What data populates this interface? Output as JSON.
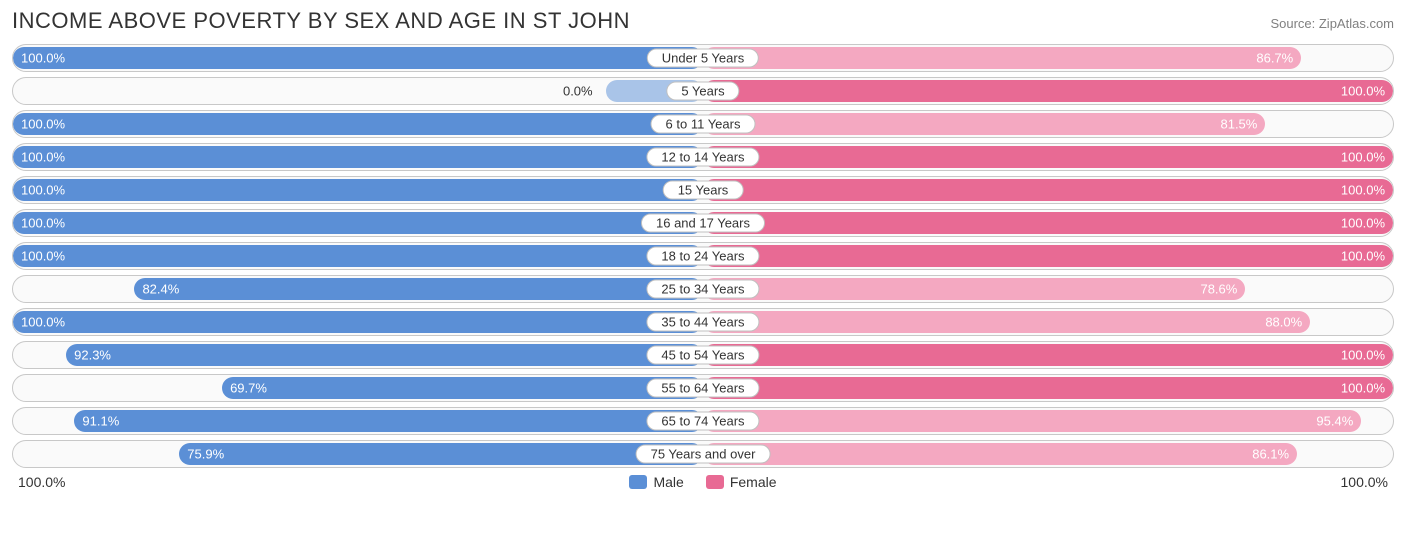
{
  "title": "INCOME ABOVE POVERTY BY SEX AND AGE IN ST JOHN",
  "source": "Source: ZipAtlas.com",
  "axis_left": "100.0%",
  "axis_right": "100.0%",
  "legend": {
    "male": "Male",
    "female": "Female"
  },
  "colors": {
    "male_full": "#5b8fd6",
    "male_light": "#a9c4e8",
    "female_full": "#e86a94",
    "female_light": "#f4a8c1",
    "row_border": "#c8c8c8",
    "row_bg": "#fafafa",
    "text": "#333333"
  },
  "rows": [
    {
      "label": "Under 5 Years",
      "male": 100.0,
      "female": 86.7,
      "male_full": true,
      "female_full": false
    },
    {
      "label": "5 Years",
      "male": 0.0,
      "female": 100.0,
      "male_full": false,
      "female_full": true,
      "male_stub": 14
    },
    {
      "label": "6 to 11 Years",
      "male": 100.0,
      "female": 81.5,
      "male_full": true,
      "female_full": false
    },
    {
      "label": "12 to 14 Years",
      "male": 100.0,
      "female": 100.0,
      "male_full": true,
      "female_full": true
    },
    {
      "label": "15 Years",
      "male": 100.0,
      "female": 100.0,
      "male_full": true,
      "female_full": true
    },
    {
      "label": "16 and 17 Years",
      "male": 100.0,
      "female": 100.0,
      "male_full": true,
      "female_full": true
    },
    {
      "label": "18 to 24 Years",
      "male": 100.0,
      "female": 100.0,
      "male_full": true,
      "female_full": true
    },
    {
      "label": "25 to 34 Years",
      "male": 82.4,
      "female": 78.6,
      "male_full": true,
      "female_full": false
    },
    {
      "label": "35 to 44 Years",
      "male": 100.0,
      "female": 88.0,
      "male_full": true,
      "female_full": false
    },
    {
      "label": "45 to 54 Years",
      "male": 92.3,
      "female": 100.0,
      "male_full": true,
      "female_full": true
    },
    {
      "label": "55 to 64 Years",
      "male": 69.7,
      "female": 100.0,
      "male_full": true,
      "female_full": true
    },
    {
      "label": "65 to 74 Years",
      "male": 91.1,
      "female": 95.4,
      "male_full": true,
      "female_full": false
    },
    {
      "label": "75 Years and over",
      "male": 75.9,
      "female": 86.1,
      "male_full": true,
      "female_full": false
    }
  ]
}
